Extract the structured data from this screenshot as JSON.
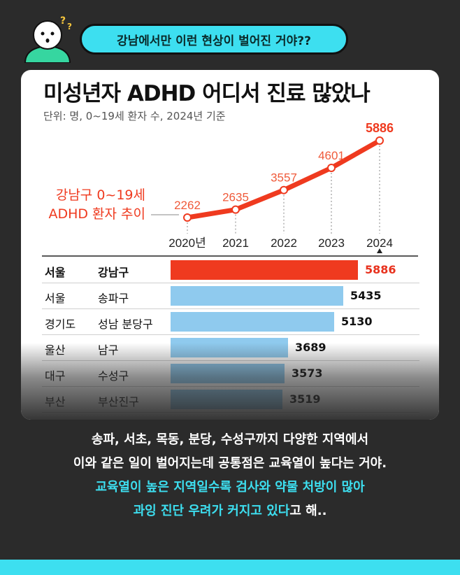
{
  "bubble_text": "강남에서만 이런 현상이 벌어진 거야??",
  "chart_data": [
    {
      "type": "line",
      "title": "미성년자 ADHD 어디서 진료 많았나",
      "subtitle": "단위: 명, 0~19세 환자 수, 2024년 기준",
      "series_label": "강남구 0~19세 ADHD 환자 추이",
      "series_label_lines": [
        "강남구 0~19세",
        "ADHD 환자 추이"
      ],
      "x": [
        "2020년",
        "2021",
        "2022",
        "2023",
        "2024"
      ],
      "values": [
        2262,
        2635,
        3557,
        4601,
        5886
      ],
      "color": "#ef3a1f"
    },
    {
      "type": "bar",
      "orientation": "horizontal",
      "rows": [
        {
          "region": "서울",
          "district": "강남구",
          "value": 5886,
          "highlight": true
        },
        {
          "region": "서울",
          "district": "송파구",
          "value": 5435
        },
        {
          "region": "경기도",
          "district": "성남 분당구",
          "value": 5130
        },
        {
          "region": "울산",
          "district": "남구",
          "value": 3689
        },
        {
          "region": "대구",
          "district": "수성구",
          "value": 3573
        },
        {
          "region": "부산",
          "district": "부산진구",
          "value": 3519
        }
      ],
      "colors": {
        "highlight": "#ef3a1f",
        "normal": "#8fcaee"
      }
    }
  ],
  "caption": {
    "line1": "송파, 서초, 목동, 분당, 수성구까지 다양한 지역에서",
    "line2": "이와 같은 일이 벌어지는데 공통점은 교육열이 높다는 거야.",
    "line3": "교육열이 높은 지역일수록 검사와 약물 처방이 많아",
    "line4_highlight": "과잉 진단 우려가 커지고 있다",
    "line4_rest": "고 해.."
  }
}
